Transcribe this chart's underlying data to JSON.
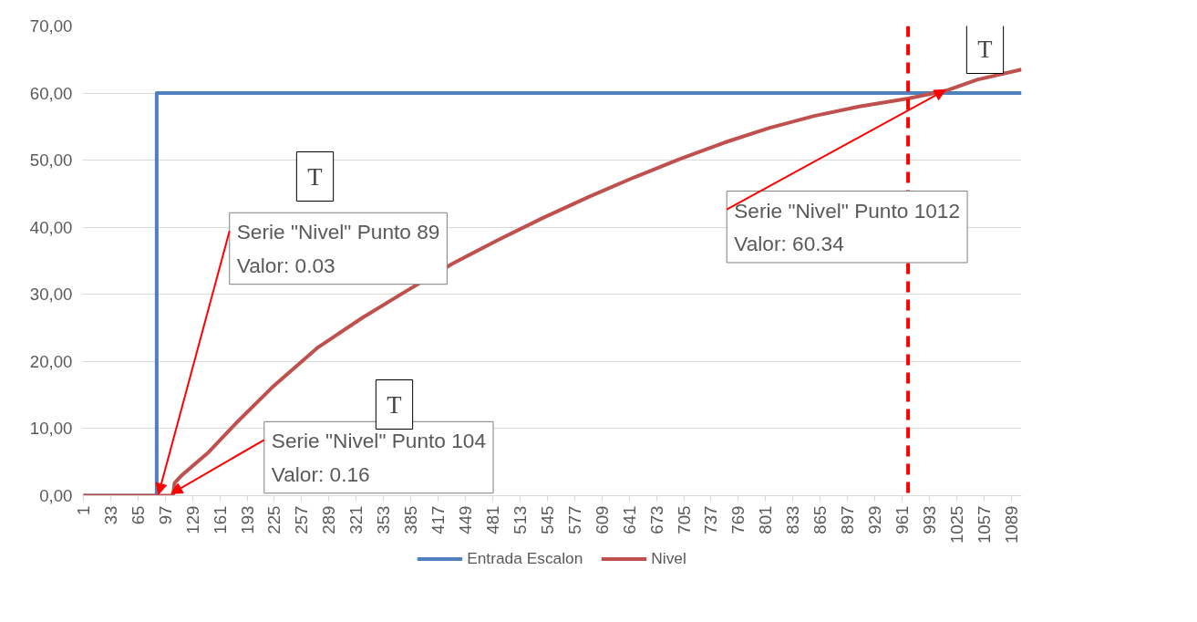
{
  "chart_data": {
    "type": "line",
    "xlim": [
      0,
      1101
    ],
    "xticks": [
      1,
      33,
      65,
      97,
      129,
      161,
      193,
      225,
      257,
      289,
      321,
      353,
      385,
      417,
      449,
      481,
      513,
      545,
      577,
      609,
      641,
      673,
      705,
      737,
      769,
      801,
      833,
      865,
      897,
      929,
      961,
      993,
      1025,
      1057,
      1089
    ],
    "ylim": [
      0,
      70
    ],
    "yticks": [
      {
        "value": 0,
        "label": "0,00"
      },
      {
        "value": 10,
        "label": "10,00"
      },
      {
        "value": 20,
        "label": "20,00"
      },
      {
        "value": 30,
        "label": "30,00"
      },
      {
        "value": 40,
        "label": "40,00"
      },
      {
        "value": 50,
        "label": "50,00"
      },
      {
        "value": 60,
        "label": "60,00"
      },
      {
        "value": 70,
        "label": "70,00"
      }
    ],
    "series": [
      {
        "name": "Entrada Escalon",
        "color": "#4f81bd",
        "x": [
          1,
          87,
          87,
          1101
        ],
        "values": [
          0,
          0,
          60,
          60
        ]
      },
      {
        "name": "Nivel",
        "color": "#c0504d",
        "x": [
          1,
          106,
          108,
          116,
          148,
          180,
          222,
          275,
          328,
          381,
          434,
          487,
          540,
          593,
          646,
          699,
          752,
          805,
          858,
          911,
          968,
          1012,
          1049,
          1101
        ],
        "values": [
          0,
          0,
          1.9,
          3.0,
          6.5,
          10.8,
          16.1,
          22.0,
          26.5,
          30.6,
          34.6,
          38.1,
          41.4,
          44.5,
          47.4,
          50.1,
          52.6,
          54.8,
          56.6,
          58.0,
          59.2,
          60.34,
          62.0,
          63.5
        ]
      }
    ],
    "ref_lines": [
      {
        "axis": "x",
        "value": 968,
        "color": "#ff0000",
        "line_style": "dashed"
      }
    ],
    "annotations": [
      {
        "text": "Serie \"Nivel\" Punto 89\nValor: 0.03",
        "x": 89,
        "y": 0.03
      },
      {
        "text": "Serie \"Nivel\" Punto 104\nValor: 0.16",
        "x": 104,
        "y": 0.16
      },
      {
        "text": "Serie \"Nivel\" Punto 1012\nValor: 60.34",
        "x": 1012,
        "y": 60.34
      },
      "T",
      "T",
      "T"
    ],
    "grid": "y",
    "legend": "bottom"
  }
}
